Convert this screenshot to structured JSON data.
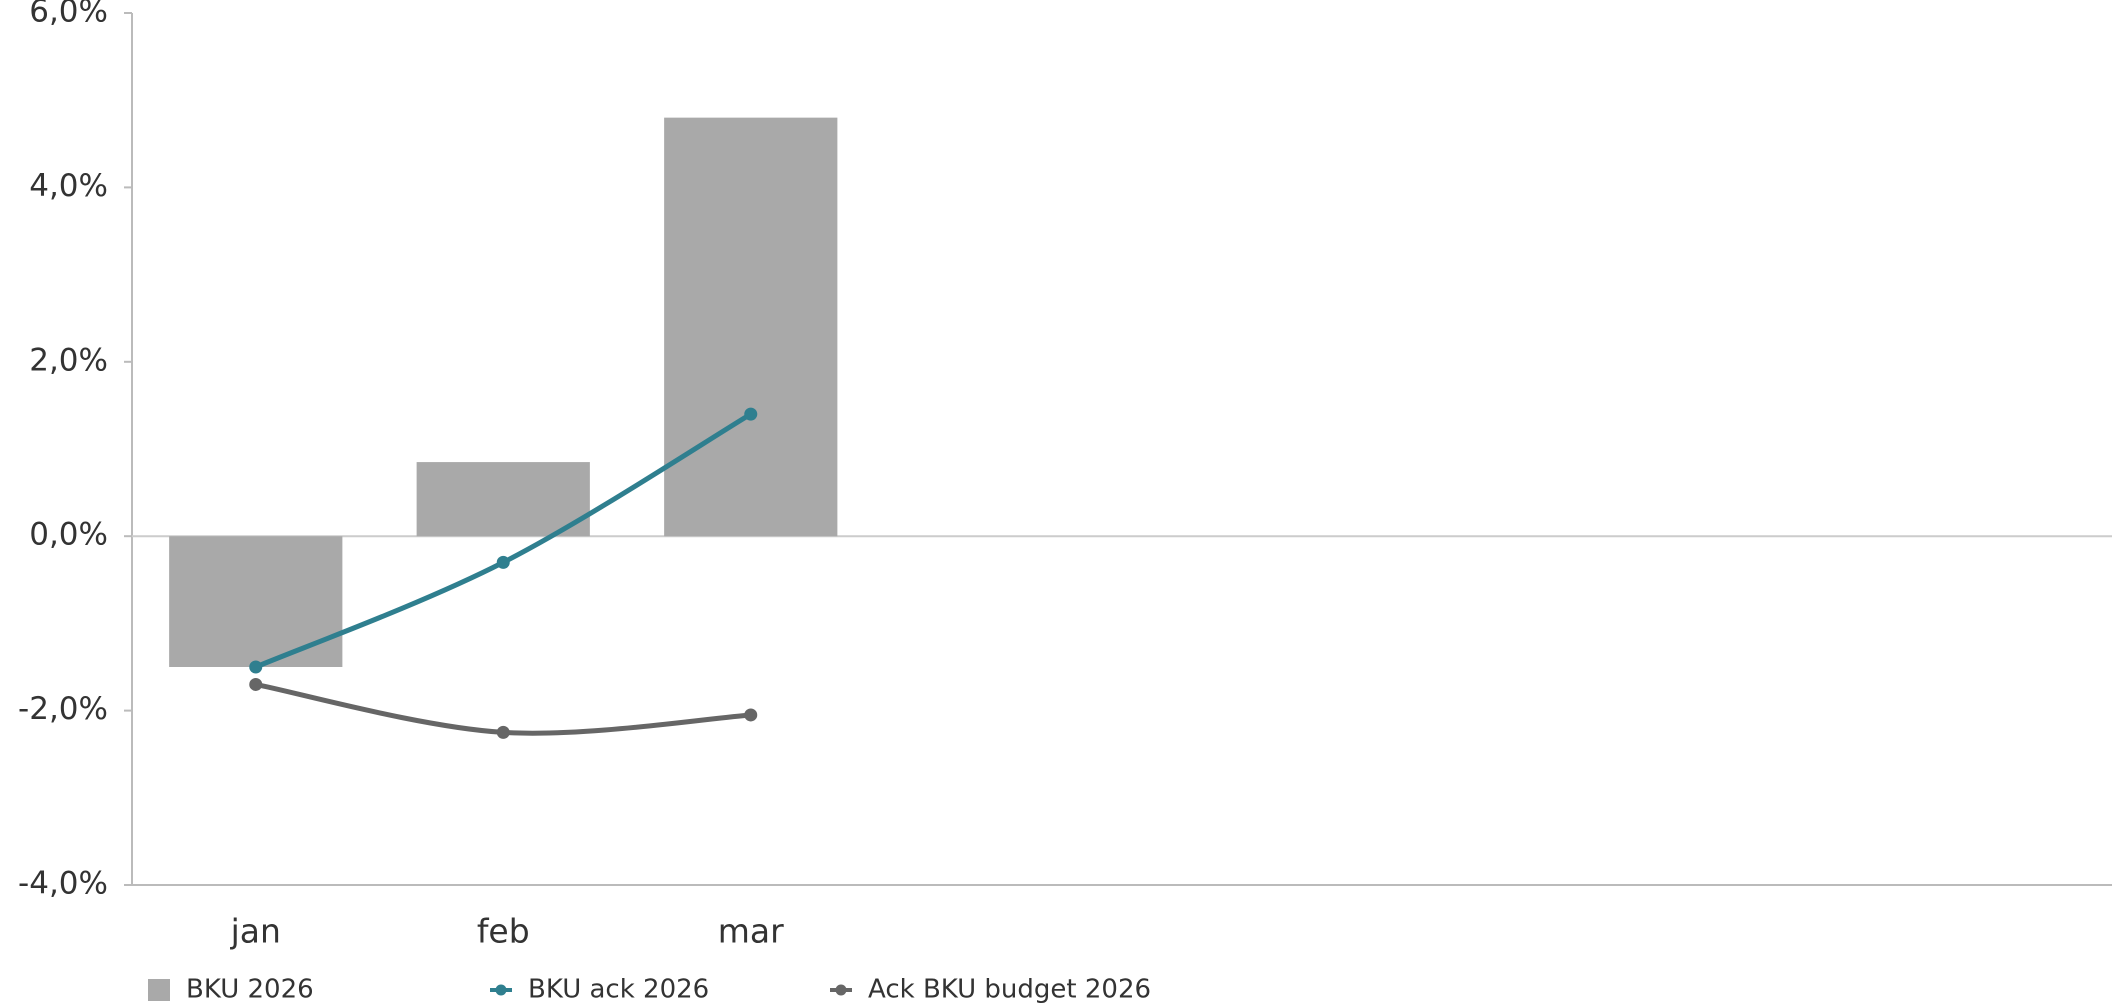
{
  "chart_data": {
    "type": "bar",
    "categories": [
      "jan",
      "feb",
      "mar",
      null,
      null,
      null,
      null,
      null
    ],
    "series": [
      {
        "name": "BKU 2026",
        "type": "bar",
        "color": "#a9a9a9",
        "values": [
          -1.5,
          0.85,
          4.8,
          null,
          null,
          null,
          null,
          null
        ]
      },
      {
        "name": "BKU ack 2026",
        "type": "line",
        "color": "#2f7f8f",
        "values": [
          -1.5,
          -0.3,
          1.4,
          null,
          null,
          null,
          null,
          null
        ]
      },
      {
        "name": "Ack BKU budget 2026",
        "type": "line",
        "color": "#666666",
        "values": [
          -1.7,
          -2.25,
          -2.05,
          null,
          null,
          null,
          null,
          null
        ]
      }
    ],
    "ylim": [
      -4,
      6
    ],
    "yticks": [
      {
        "value": -4,
        "label": "-4,0%"
      },
      {
        "value": -2,
        "label": "-2,0%"
      },
      {
        "value": 0,
        "label": "0,0%"
      },
      {
        "value": 2,
        "label": "2,0%"
      },
      {
        "value": 4,
        "label": "4,0%"
      },
      {
        "value": 6,
        "label": "6,0%"
      }
    ],
    "grid": false,
    "legend": "bottom"
  }
}
